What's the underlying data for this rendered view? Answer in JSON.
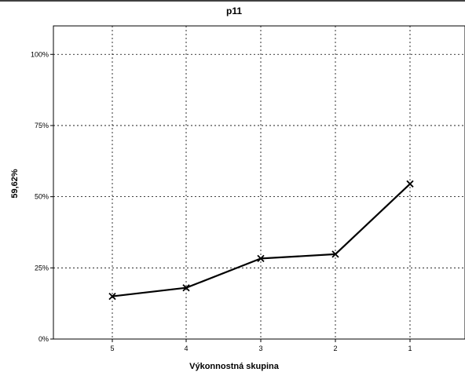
{
  "chart_data": {
    "type": "line",
    "title": "p11",
    "xlabel": "Výkonnostná skupina",
    "ylabel": "59,62%",
    "categories": [
      "5",
      "4",
      "3",
      "2",
      "1"
    ],
    "series": [
      {
        "values": [
          15.0,
          18.0,
          28.3,
          29.8,
          54.5
        ],
        "marker": "x"
      }
    ],
    "ylim": [
      0,
      110
    ],
    "yticks": [
      0,
      25,
      50,
      75,
      100
    ],
    "ytick_labels": [
      "0%",
      "25%",
      "50%",
      "75%",
      "100%"
    ],
    "grid": true,
    "grid_style": "dotted",
    "line_color": "#000000"
  }
}
